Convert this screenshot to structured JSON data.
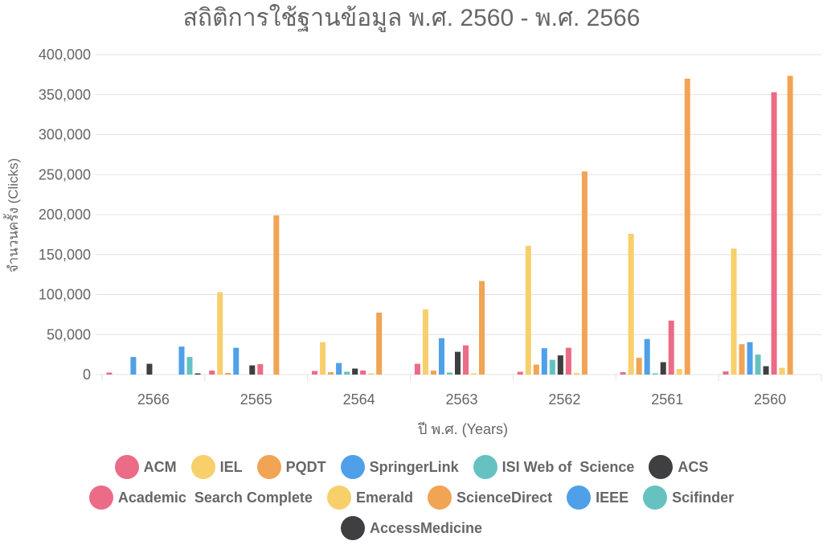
{
  "chart_data": {
    "type": "bar",
    "title": "สถิติการใช้ฐานข้อมูล พ.ศ. 2560 - พ.ศ. 2566",
    "xlabel": "ปี พ.ศ.  (Years)",
    "ylabel": "จำนวนครั้ง (Clicks)",
    "ylim": [
      0,
      400000
    ],
    "yticks": [
      "0",
      "50,000",
      "100,000",
      "150,000",
      "200,000",
      "250,000",
      "300,000",
      "350,000",
      "400,000"
    ],
    "ytick_values": [
      0,
      50000,
      100000,
      150000,
      200000,
      250000,
      300000,
      350000,
      400000
    ],
    "grid": true,
    "legend_position": "bottom",
    "categories": [
      "2566",
      "2565",
      "2564",
      "2563",
      "2562",
      "2561",
      "2560"
    ],
    "series": [
      {
        "name": "ACM",
        "color": "#ec6b86",
        "values": [
          2500,
          5000,
          4500,
          13500,
          3500,
          3000,
          4000
        ]
      },
      {
        "name": "IEL",
        "color": "#f7cf6b",
        "values": [
          0,
          103000,
          40500,
          81500,
          161000,
          176000,
          157500
        ]
      },
      {
        "name": "PQDT",
        "color": "#f1a454",
        "values": [
          0,
          2000,
          3000,
          5000,
          12500,
          21000,
          38000
        ]
      },
      {
        "name": "SpringerLink",
        "color": "#4fa0e8",
        "values": [
          22000,
          33500,
          14500,
          45500,
          33000,
          44500,
          40500
        ]
      },
      {
        "name": "ISI Web of  Science",
        "color": "#65c2c1",
        "values": [
          0,
          0,
          3500,
          2500,
          18500,
          1500,
          25000
        ]
      },
      {
        "name": "ACS",
        "color": "#3f3f42",
        "values": [
          13500,
          11500,
          7500,
          28500,
          24000,
          15500,
          10500
        ]
      },
      {
        "name": "Academic  Search Complete",
        "color": "#ec6b86",
        "values": [
          0,
          13000,
          5000,
          36500,
          33500,
          67500,
          353000
        ]
      },
      {
        "name": "Emerald",
        "color": "#f7cf6b",
        "values": [
          0,
          0,
          1500,
          1500,
          2000,
          7000,
          8500
        ]
      },
      {
        "name": "ScienceDirect",
        "color": "#f1a454",
        "values": [
          0,
          199000,
          77500,
          117000,
          254000,
          370000,
          373500
        ]
      },
      {
        "name": "IEEE",
        "color": "#4fa0e8",
        "values": [
          35000,
          0,
          0,
          0,
          0,
          0,
          0
        ]
      },
      {
        "name": "Scifinder",
        "color": "#65c2c1",
        "values": [
          22000,
          0,
          0,
          0,
          0,
          0,
          0
        ]
      },
      {
        "name": "AccessMedicine",
        "color": "#3f3f42",
        "values": [
          1500,
          0,
          0,
          0,
          0,
          0,
          0
        ]
      }
    ]
  }
}
